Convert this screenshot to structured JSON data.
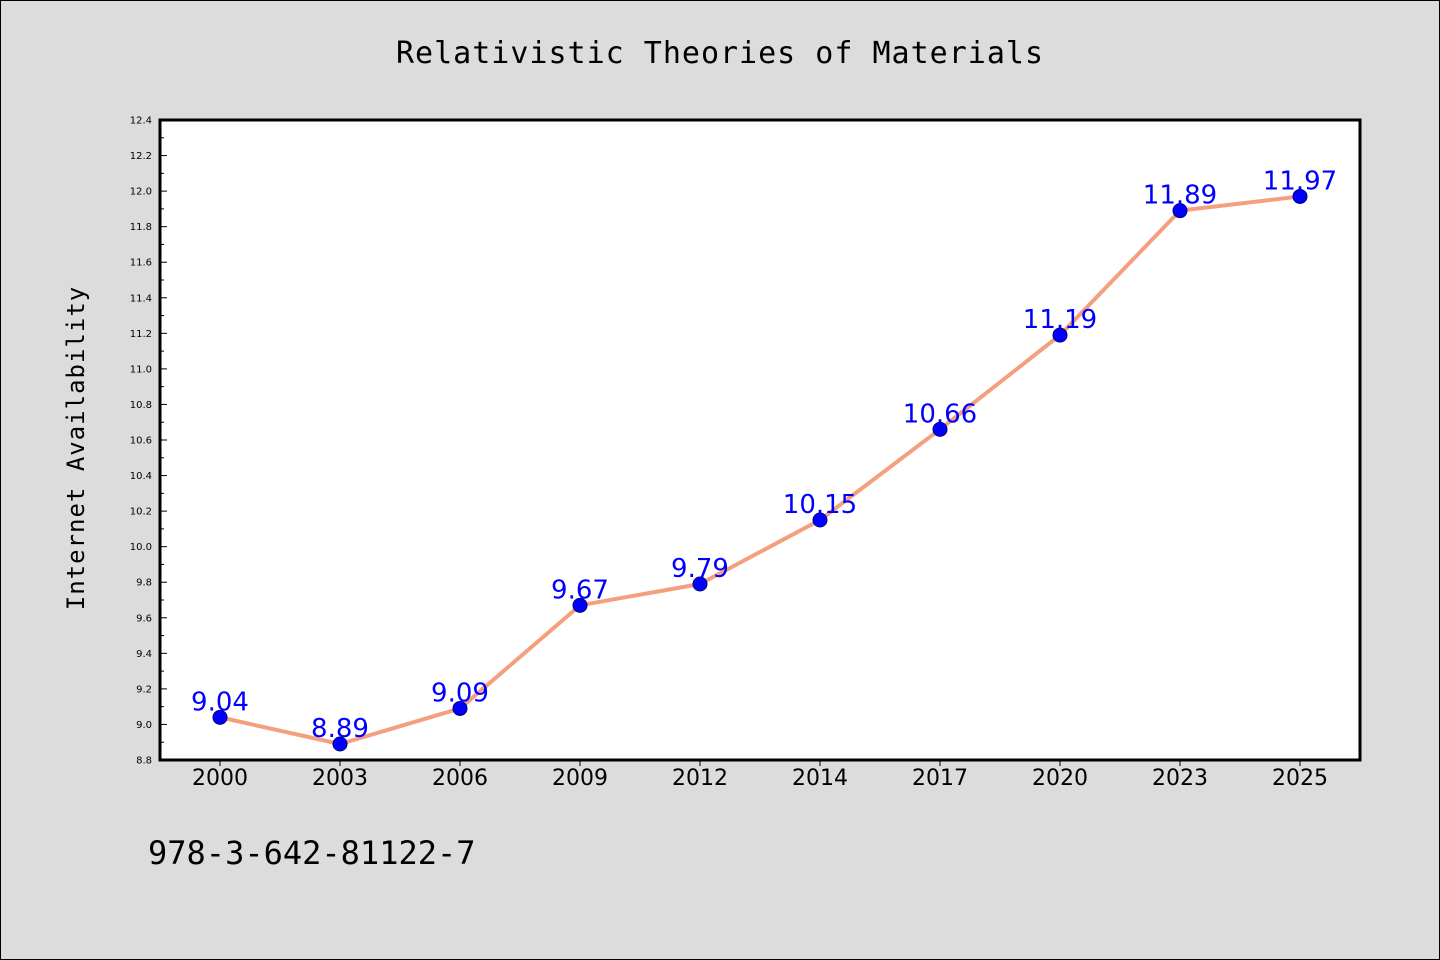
{
  "colors": {
    "background": "#dcdcdc",
    "plot_background": "#ffffff",
    "line": "#f4a07f",
    "marker": "#0000ff",
    "data_label": "#0000ff"
  },
  "footer": {
    "code": "978-3-642-81122-7"
  },
  "chart_data": {
    "type": "line",
    "title": "Relativistic Theories of Materials",
    "xlabel": "",
    "ylabel": "Internet Availability",
    "categories": [
      "2000",
      "2003",
      "2006",
      "2009",
      "2012",
      "2014",
      "2017",
      "2020",
      "2023",
      "2025"
    ],
    "series": [
      {
        "values": [
          9.04,
          8.89,
          9.09,
          9.67,
          9.79,
          10.15,
          10.66,
          11.19,
          11.89,
          11.97
        ],
        "labels": [
          "9.04",
          "8.89",
          "9.09",
          "9.67",
          "9.79",
          "10.15",
          "10.66",
          "11.19",
          "11.89",
          "11.97"
        ]
      }
    ],
    "ylim": [
      8.8,
      12.4
    ],
    "yticks": [
      "8.8",
      "9.0",
      "9.2",
      "9.4",
      "9.6",
      "9.8",
      "10.0",
      "10.2",
      "10.4",
      "10.6",
      "10.8",
      "11.0",
      "11.2",
      "11.4",
      "11.6",
      "11.8",
      "12.0",
      "12.2",
      "12.4"
    ],
    "grid": false,
    "legend": "none",
    "markers": "circle",
    "data_labels": true
  }
}
